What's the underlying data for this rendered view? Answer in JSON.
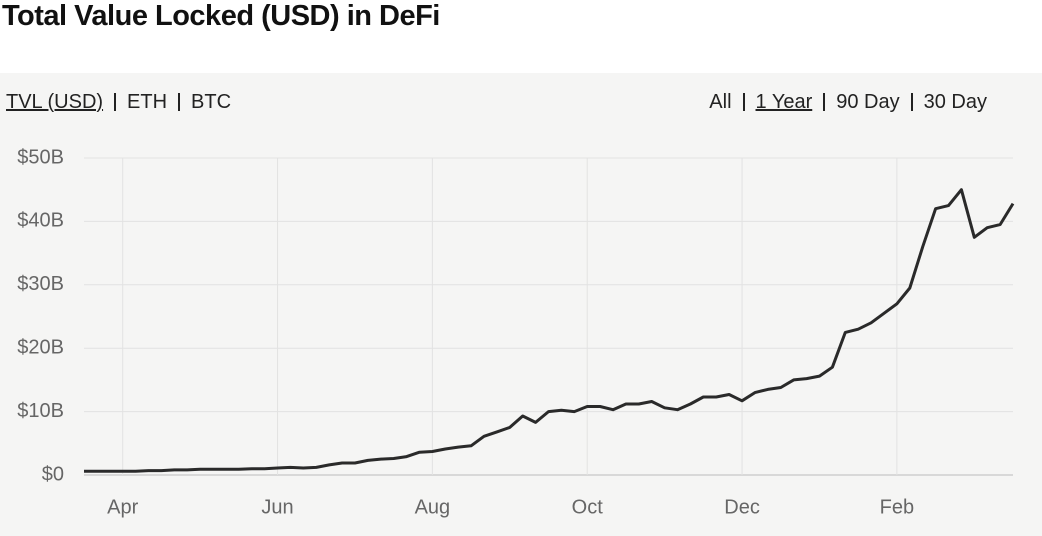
{
  "chart_data": {
    "type": "line",
    "title": "Total Value Locked (USD) in DeFi",
    "units_tabs": [
      "TVL (USD)",
      "ETH",
      "BTC"
    ],
    "range_tabs": [
      "All",
      "1 Year",
      "90 Day",
      "30 Day"
    ],
    "categories": [
      null,
      null,
      null,
      "Apr",
      null,
      null,
      null,
      null,
      null,
      null,
      null,
      null,
      null,
      null,
      null,
      "Jun",
      null,
      null,
      null,
      null,
      null,
      null,
      null,
      null,
      null,
      null,
      null,
      "Aug",
      null,
      null,
      null,
      null,
      null,
      null,
      null,
      null,
      null,
      null,
      null,
      "Oct",
      null,
      null,
      null,
      null,
      null,
      null,
      null,
      null,
      null,
      null,
      null,
      "Dec",
      null,
      null,
      null,
      null,
      null,
      null,
      null,
      null,
      null,
      null,
      null,
      "Feb",
      null,
      null,
      null,
      null,
      null,
      null,
      null,
      null,
      null
    ],
    "values": [
      0.6,
      0.6,
      0.6,
      0.6,
      0.6,
      0.7,
      0.7,
      0.8,
      0.8,
      0.9,
      0.9,
      0.9,
      0.9,
      1.0,
      1.0,
      1.1,
      1.2,
      1.1,
      1.2,
      1.6,
      1.9,
      1.9,
      2.3,
      2.5,
      2.6,
      2.9,
      3.6,
      3.7,
      4.1,
      4.4,
      4.6,
      6.1,
      6.8,
      7.5,
      9.3,
      8.3,
      10.0,
      10.2,
      10.0,
      10.8,
      10.8,
      10.3,
      11.2,
      11.2,
      11.6,
      10.6,
      10.3,
      11.2,
      12.3,
      12.3,
      12.7,
      11.7,
      13.0,
      13.5,
      13.8,
      15.0,
      15.2,
      15.6,
      17.0,
      22.5,
      23.0,
      24.0,
      25.5,
      27.0,
      29.5,
      36.0,
      42.0,
      42.5,
      45.0,
      37.5,
      39.0,
      39.5,
      42.8
    ],
    "color": "#2a2a2a",
    "ylim": [
      0,
      50
    ],
    "yticks": [
      {
        "value": 0,
        "label": "$0"
      },
      {
        "value": 10,
        "label": "$10B"
      },
      {
        "value": 20,
        "label": "$20B"
      },
      {
        "value": 30,
        "label": "$30B"
      },
      {
        "value": 40,
        "label": "$40B"
      },
      {
        "value": 50,
        "label": "$50B"
      }
    ],
    "grid": true
  }
}
